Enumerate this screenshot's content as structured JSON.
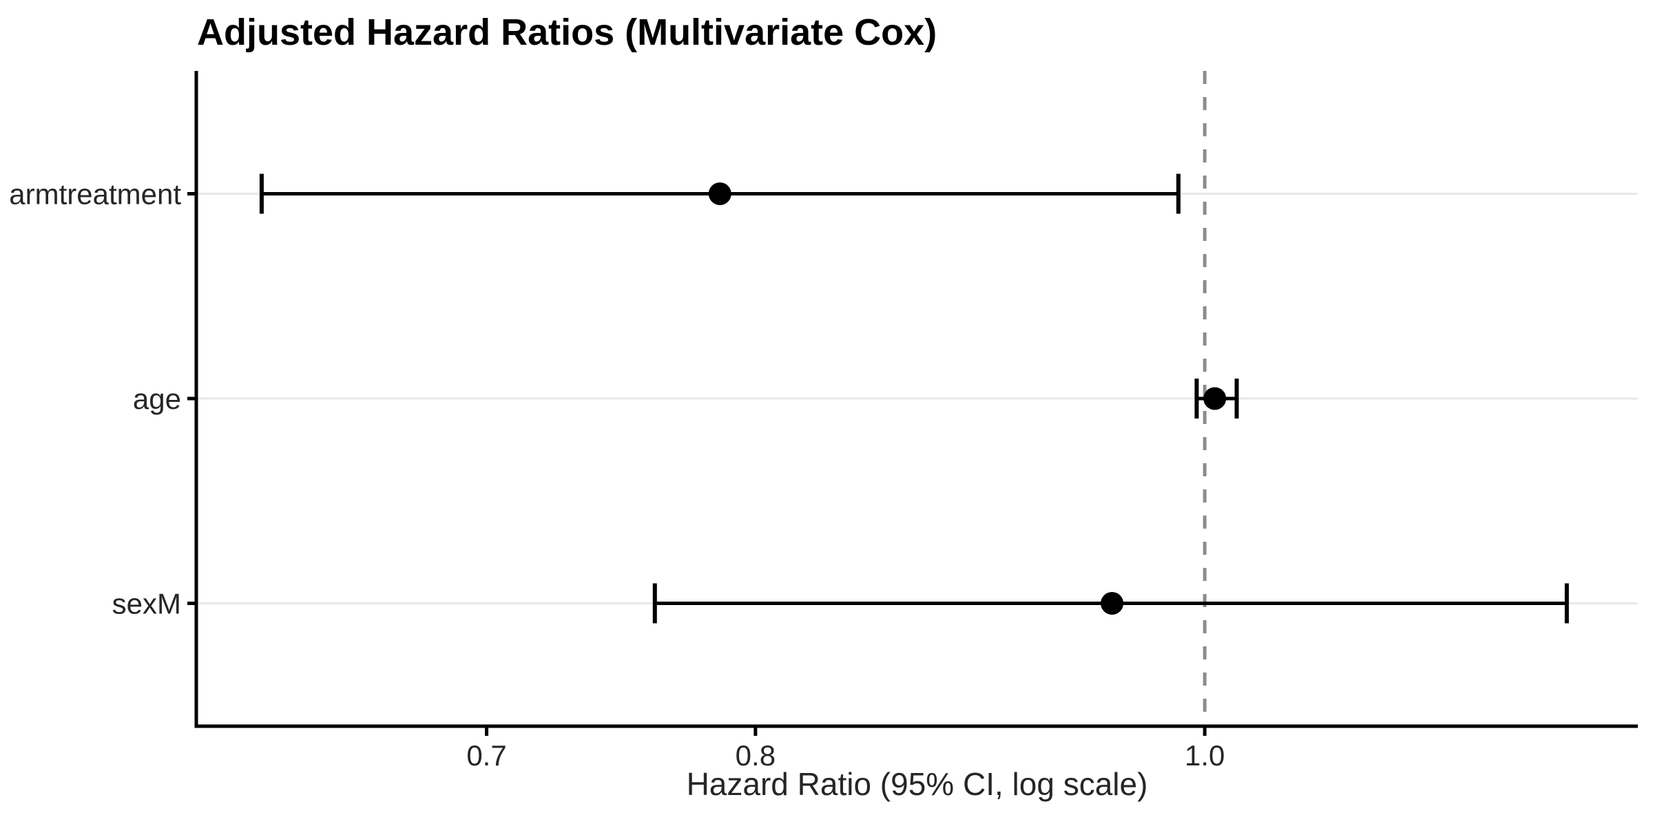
{
  "title": "Adjusted Hazard Ratios (Multivariate Cox)",
  "chart_data": {
    "type": "scatter",
    "subtype": "forest-plot-with-error-bars",
    "title": "Adjusted Hazard Ratios (Multivariate Cox)",
    "xlabel": "Hazard Ratio (95% CI, log scale)",
    "ylabel": "",
    "x_scale": "log10",
    "xlim": [
      0.606,
      1.24
    ],
    "x_ticks": [
      0.7,
      0.8,
      1.0
    ],
    "x_tick_labels": [
      "0.7",
      "0.8",
      "1.0"
    ],
    "reference_line_x": 1.0,
    "grid": "horizontal major gridlines only",
    "legend": "none",
    "categories": [
      "armtreatment",
      "age",
      "sexM"
    ],
    "series": [
      {
        "name": "armtreatment",
        "hr": 0.786,
        "ci_low": 0.626,
        "ci_high": 0.987
      },
      {
        "name": "age",
        "hr": 1.005,
        "ci_low": 0.996,
        "ci_high": 1.016
      },
      {
        "name": "sexM",
        "hr": 0.955,
        "ci_low": 0.761,
        "ci_high": 1.197
      }
    ]
  },
  "style": {
    "background": "#ffffff",
    "point_color": "#000000",
    "errorbar_color": "#000000",
    "axis_color": "#000000",
    "gridline_color": "#e8e8e8",
    "reference_line_color": "#8c8c8c",
    "axis_text_color": "#262626",
    "title_color": "#000000"
  }
}
